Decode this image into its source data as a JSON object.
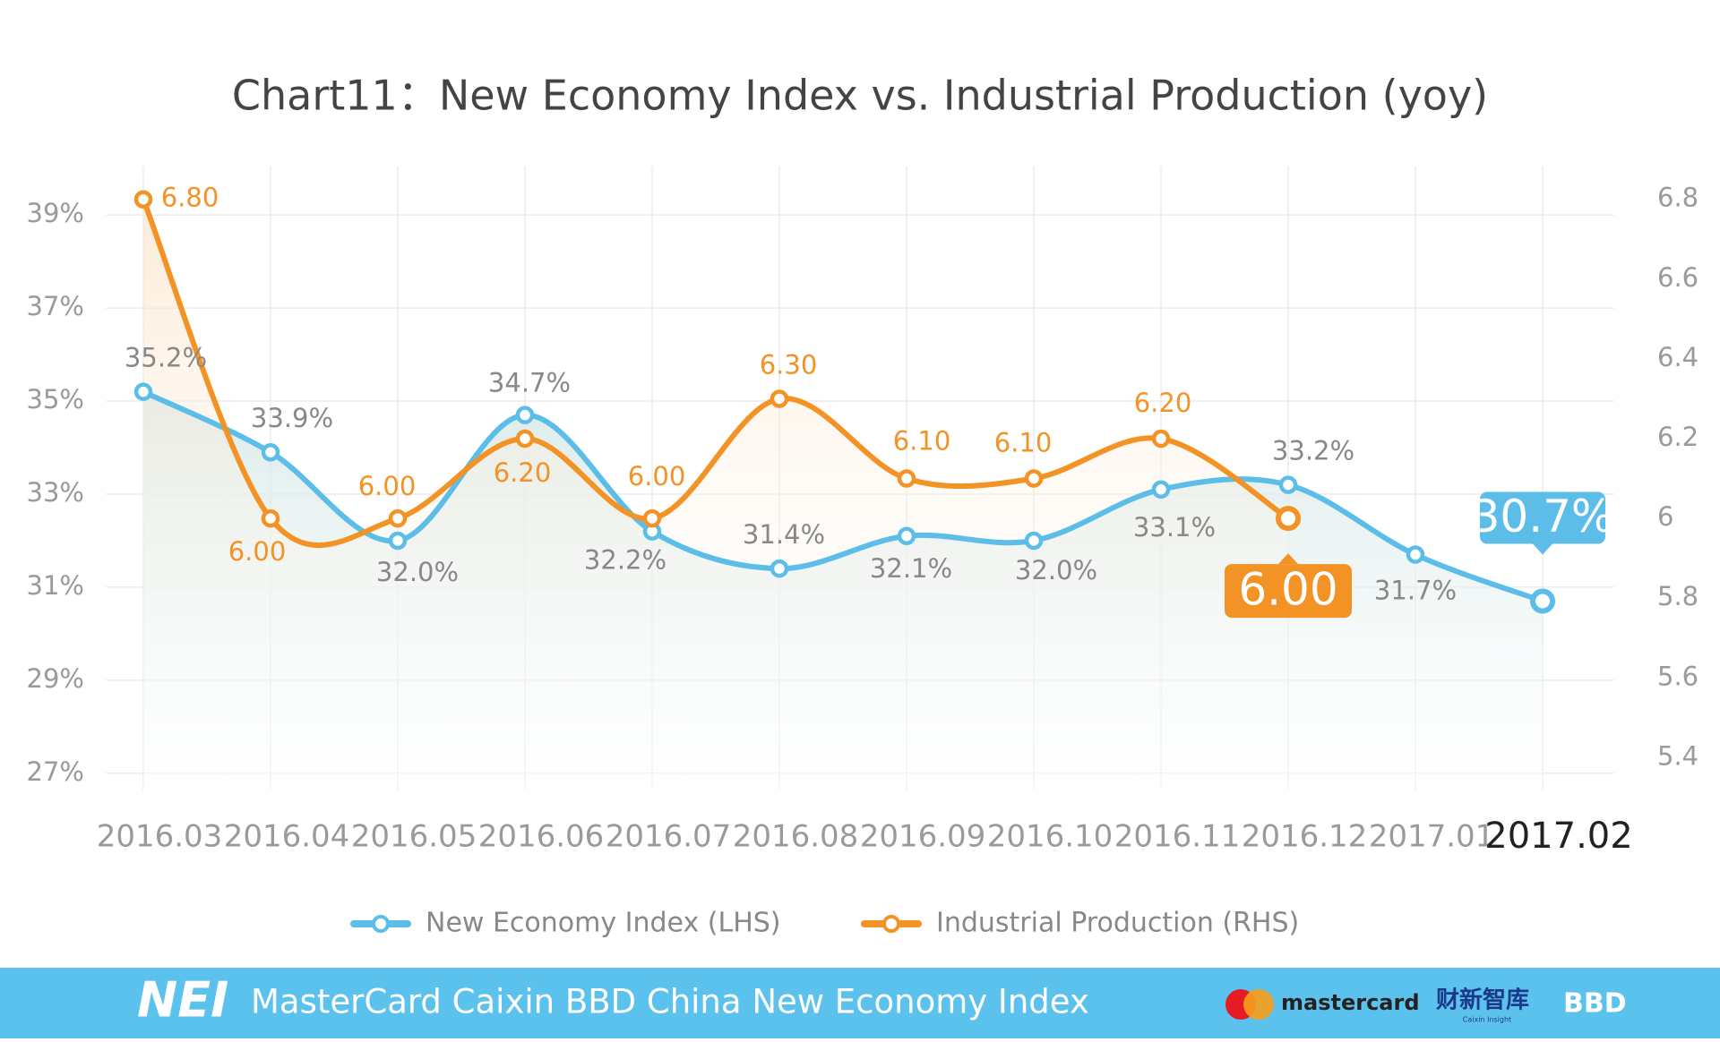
{
  "chart_data": {
    "type": "line",
    "title": "Chart11：New Economy Index vs. Industrial Production (yoy)",
    "categories": [
      "2016.03",
      "2016.04",
      "2016.05",
      "2016.06",
      "2016.07",
      "2016.08",
      "2016.09",
      "2016.10",
      "2016.11",
      "2016.12",
      "2017.01",
      "2017.02"
    ],
    "series": [
      {
        "name": "New Economy Index (LHS)",
        "color": "#5bbde8",
        "axis": "y",
        "values": [
          35.2,
          33.9,
          32.0,
          34.7,
          32.2,
          31.4,
          32.1,
          32.0,
          33.1,
          33.2,
          31.7,
          30.7
        ],
        "value_labels": [
          "35.2%",
          "33.9%",
          "32.0%",
          "34.7%",
          "32.2%",
          "31.4%",
          "32.1%",
          "32.0%",
          "33.1%",
          "33.2%",
          "31.7%",
          "30.7%"
        ]
      },
      {
        "name": "Industrial Production (RHS)",
        "color": "#f39325",
        "axis": "y2",
        "values": [
          6.8,
          6.0,
          6.0,
          6.2,
          6.0,
          6.3,
          6.1,
          6.1,
          6.2,
          6.0,
          null,
          null
        ],
        "value_labels": [
          "6.80",
          "6.00",
          "6.00",
          "6.20",
          "6.00",
          "6.30",
          "6.10",
          "6.10",
          "6.20",
          "6.00",
          null,
          null
        ]
      }
    ],
    "ylim": [
      26.65,
      39.85
    ],
    "yticks": [
      {
        "value": 27,
        "label": "27%"
      },
      {
        "value": 29,
        "label": "29%"
      },
      {
        "value": 31,
        "label": "31%"
      },
      {
        "value": 33,
        "label": "33%"
      },
      {
        "value": 35,
        "label": "35%"
      },
      {
        "value": 37,
        "label": "37%"
      },
      {
        "value": 39,
        "label": "39%"
      }
    ],
    "y2lim": [
      5.32,
      6.86
    ],
    "y2ticks": [
      5.4,
      5.6,
      5.8,
      6,
      6.2,
      6.4,
      6.6,
      6.8
    ],
    "grid": true
  },
  "footer": {
    "logo": "NEI",
    "title": "MasterCard Caixin BBD China New Economy Index",
    "partner1": "mastercard",
    "partner2": "财新智库",
    "partner2_sub": "Caixin Insight",
    "partner3": "BBD"
  }
}
